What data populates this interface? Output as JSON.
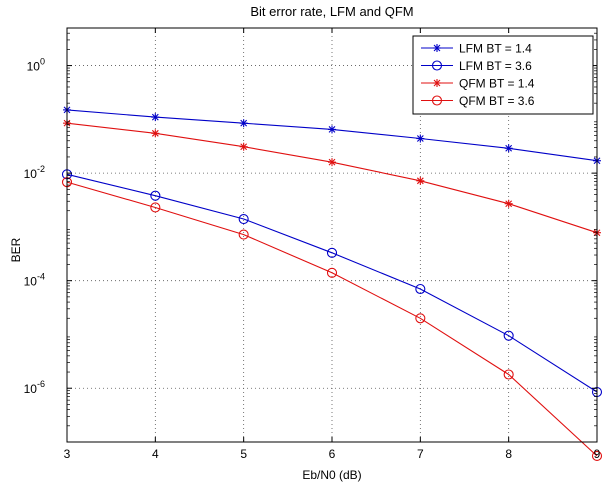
{
  "chart_data": {
    "type": "line",
    "title": "Bit error rate, LFM and QFM",
    "xlabel": "Eb/N0 (dB)",
    "ylabel": "BER",
    "x": [
      3,
      4,
      5,
      6,
      7,
      8,
      9
    ],
    "xlim": [
      3,
      9
    ],
    "ylim": [
      1e-07,
      5.0
    ],
    "yscale": "log",
    "xticks": [
      3,
      4,
      5,
      6,
      7,
      8,
      9
    ],
    "xtick_labels": [
      "3",
      "4",
      "5",
      "6",
      "7",
      "8",
      "9"
    ],
    "yticks": [
      1.0,
      0.01,
      0.0001,
      1e-06
    ],
    "ytick_labels": [
      {
        "base": "10",
        "exp": "0"
      },
      {
        "base": "10",
        "exp": "-2"
      },
      {
        "base": "10",
        "exp": "-4"
      },
      {
        "base": "10",
        "exp": "-6"
      }
    ],
    "grid": true,
    "legend_position": "top-right",
    "series": [
      {
        "name": "LFM BT = 1.4",
        "color": "#0000c8",
        "marker": "star",
        "values": [
          0.15,
          0.11,
          0.085,
          0.065,
          0.044,
          0.029,
          0.017
        ]
      },
      {
        "name": "LFM BT = 3.6",
        "color": "#0000c8",
        "marker": "circle",
        "values": [
          0.0095,
          0.0038,
          0.0014,
          0.00033,
          7e-05,
          9.5e-06,
          8.5e-07
        ]
      },
      {
        "name": "QFM BT = 1.4",
        "color": "#e01010",
        "marker": "star",
        "values": [
          0.085,
          0.055,
          0.031,
          0.016,
          0.0072,
          0.0027,
          0.00078
        ]
      },
      {
        "name": "QFM BT = 3.6",
        "color": "#e01010",
        "marker": "circle",
        "values": [
          0.0068,
          0.0023,
          0.00072,
          0.00014,
          2e-05,
          1.8e-06,
          5.5e-08
        ]
      }
    ]
  }
}
